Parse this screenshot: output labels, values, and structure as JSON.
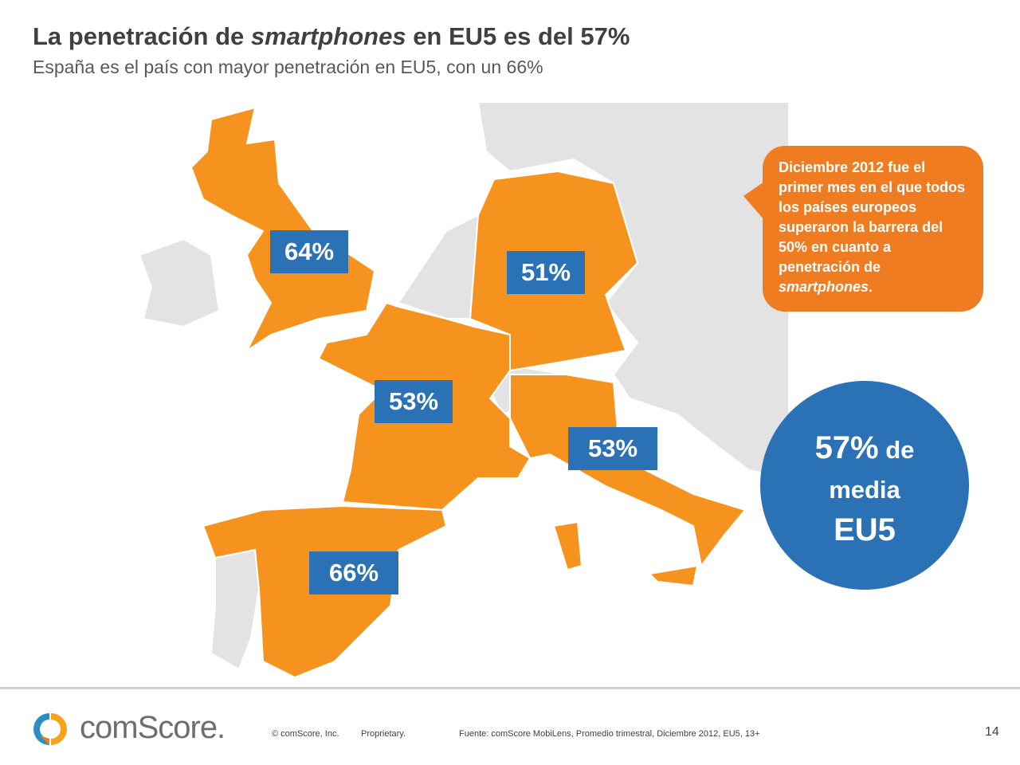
{
  "header": {
    "title_prefix": "La penetración de ",
    "title_italic": "smartphones",
    "title_suffix": " en EU5 es del 57%",
    "subtitle": "España es el país con mayor penetración en EU5, con un 66%"
  },
  "map": {
    "colors": {
      "highlight": "#f6931e",
      "other": "#e3e3e3",
      "label_bg": "#2a72b5"
    },
    "countries": [
      {
        "name": "UK",
        "value": "64%"
      },
      {
        "name": "Germany",
        "value": "51%"
      },
      {
        "name": "France",
        "value": "53%"
      },
      {
        "name": "Italy",
        "value": "53%"
      },
      {
        "name": "Spain",
        "value": "66%"
      }
    ]
  },
  "callout": {
    "text_before": "Diciembre 2012 fue el primer mes en el que todos los países europeos superaron la barrera del 50% en cuanto a penetración de ",
    "text_italic": "smartphones",
    "text_after": "."
  },
  "average": {
    "value": "57%",
    "word1": " de",
    "word2": "media",
    "word3": "EU5"
  },
  "footer": {
    "brand": "comScore.",
    "copyright": "© comScore, Inc.",
    "proprietary": "Proprietary.",
    "source": "Fuente: comScore MobiLens,  Promedio trimestral, Diciembre 2012, EU5, 13+",
    "page": "14"
  }
}
